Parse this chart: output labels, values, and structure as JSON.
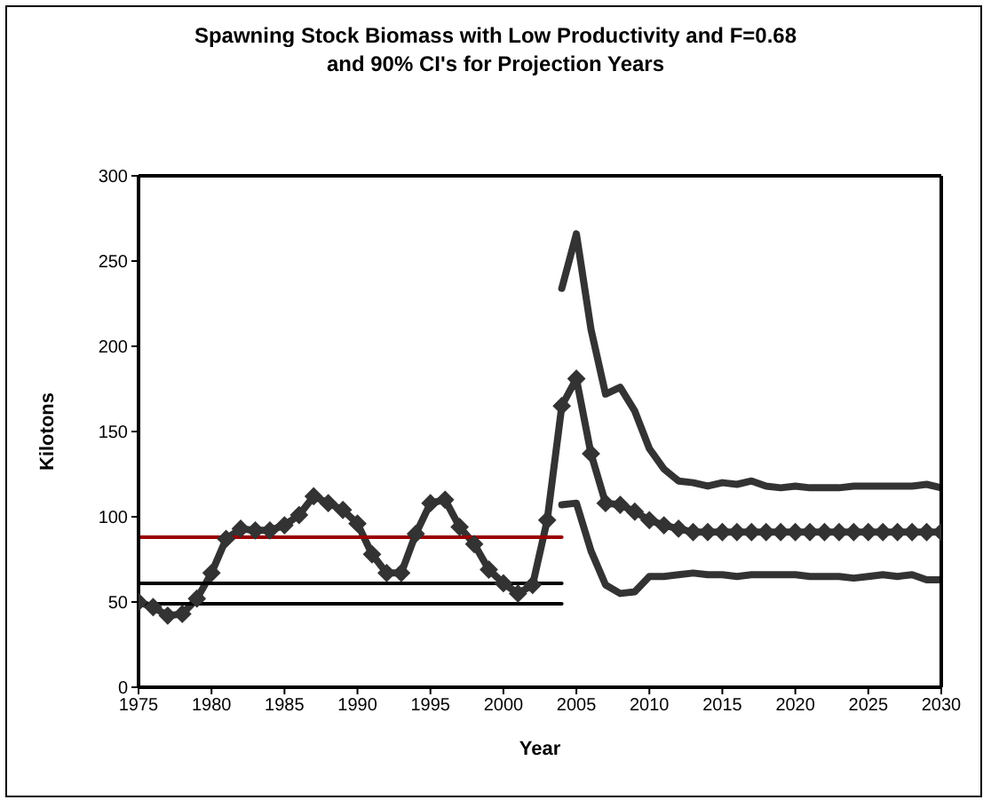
{
  "chart_data": {
    "type": "line",
    "title": "Spawning Stock Biomass with Low Productivity and F=0.68\nand 90% CI's for Projection Years",
    "xlabel": "Year",
    "ylabel": "Kilotons",
    "xlim": [
      1975,
      2030
    ],
    "xticks": [
      1975,
      1980,
      1985,
      1990,
      1995,
      2000,
      2005,
      2010,
      2015,
      2020,
      2025,
      2030
    ],
    "ylim": [
      0,
      300
    ],
    "yticks": [
      0,
      50,
      100,
      150,
      200,
      250,
      300
    ],
    "grid": false,
    "series": [
      {
        "color": "#333333",
        "marker": "diamond",
        "x": [
          1975,
          1976,
          1977,
          1978,
          1979,
          1980,
          1981,
          1982,
          1983,
          1984,
          1985,
          1986,
          1987,
          1988,
          1989,
          1990,
          1991,
          1992,
          1993,
          1994,
          1995,
          1996,
          1997,
          1998,
          1999,
          2000,
          2001,
          2002,
          2003,
          2004,
          2005,
          2006,
          2007,
          2008,
          2009,
          2010,
          2011,
          2012,
          2013,
          2014,
          2015,
          2016,
          2017,
          2018,
          2019,
          2020,
          2021,
          2022,
          2023,
          2024,
          2025,
          2026,
          2027,
          2028,
          2029,
          2030
        ],
        "values": [
          50,
          47,
          42,
          43,
          52,
          67,
          87,
          93,
          92,
          92,
          95,
          101,
          112,
          108,
          104,
          96,
          78,
          67,
          67,
          90,
          108,
          110,
          94,
          84,
          69,
          61,
          55,
          60,
          98,
          165,
          181,
          137,
          108,
          107,
          103,
          98,
          95,
          93,
          91,
          91,
          91,
          91,
          91,
          91,
          91,
          91,
          91,
          91,
          91,
          91,
          91,
          91,
          91,
          91,
          91,
          91
        ]
      },
      {
        "color": "#333333",
        "marker": "none",
        "x": [
          2004,
          2005,
          2006,
          2007,
          2008,
          2009,
          2010,
          2011,
          2012,
          2013,
          2014,
          2015,
          2016,
          2017,
          2018,
          2019,
          2020,
          2021,
          2022,
          2023,
          2024,
          2025,
          2026,
          2027,
          2028,
          2029,
          2030
        ],
        "values": [
          234,
          266,
          210,
          172,
          176,
          162,
          140,
          128,
          121,
          120,
          118,
          120,
          119,
          121,
          118,
          117,
          118,
          117,
          117,
          117,
          118,
          118,
          118,
          118,
          118,
          119,
          117
        ]
      },
      {
        "color": "#333333",
        "marker": "none",
        "x": [
          2004,
          2005,
          2006,
          2007,
          2008,
          2009,
          2010,
          2011,
          2012,
          2013,
          2014,
          2015,
          2016,
          2017,
          2018,
          2019,
          2020,
          2021,
          2022,
          2023,
          2024,
          2025,
          2026,
          2027,
          2028,
          2029,
          2030
        ],
        "values": [
          107,
          108,
          80,
          60,
          55,
          56,
          65,
          65,
          66,
          67,
          66,
          66,
          65,
          66,
          66,
          66,
          66,
          65,
          65,
          65,
          64,
          65,
          66,
          65,
          66,
          63,
          63
        ]
      },
      {
        "color": "#990000",
        "marker": "none",
        "x": [
          1975,
          2004
        ],
        "values": [
          88,
          88
        ]
      },
      {
        "color": "#000000",
        "marker": "none",
        "x": [
          1975,
          2004
        ],
        "values": [
          61,
          61
        ]
      },
      {
        "color": "#000000",
        "marker": "none",
        "x": [
          1975,
          2004
        ],
        "values": [
          49,
          49
        ]
      }
    ]
  }
}
